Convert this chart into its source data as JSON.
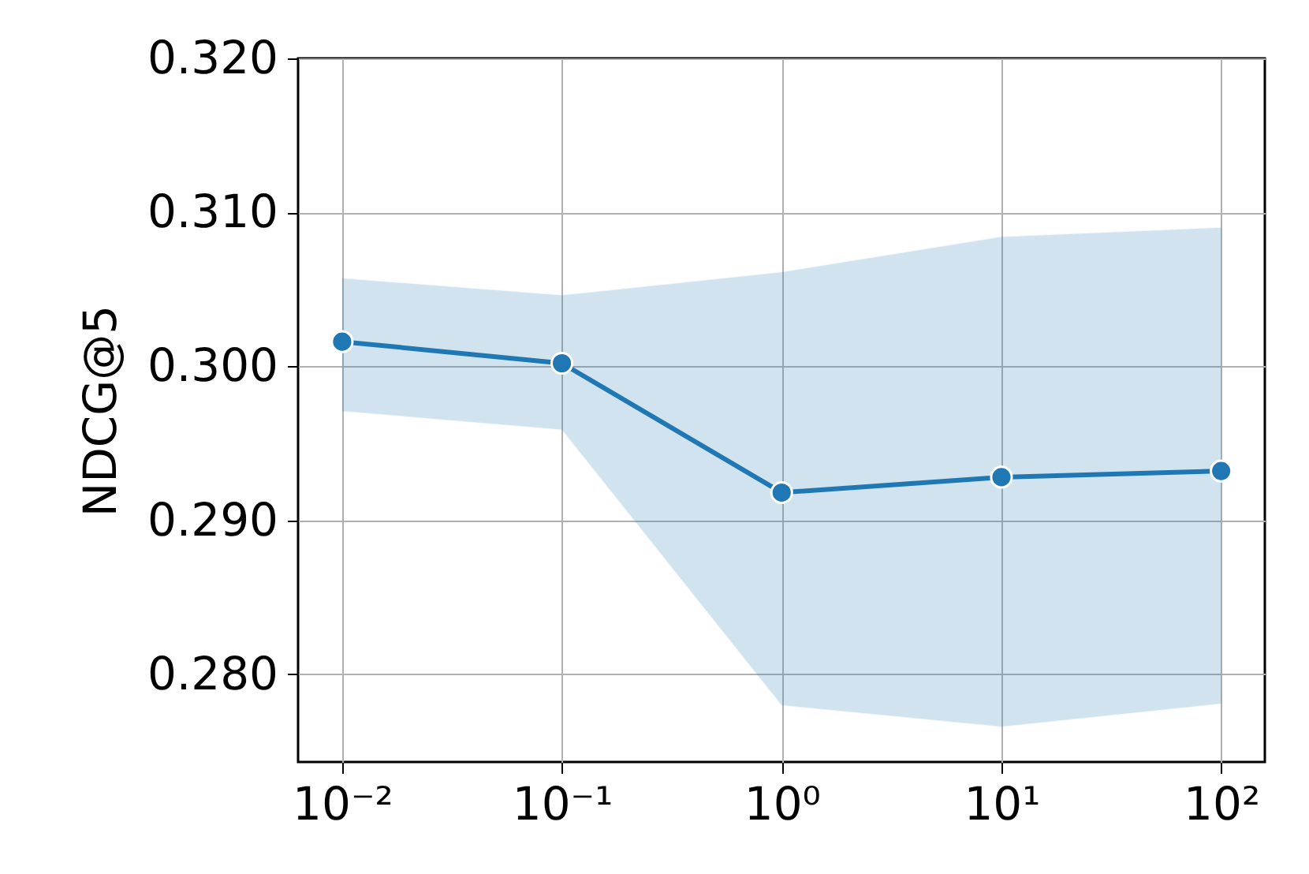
{
  "chart_data": {
    "type": "line",
    "ylabel": "NDCG@5",
    "x": [
      0.01,
      0.1,
      1,
      10,
      100
    ],
    "series": [
      {
        "color": "#1f77b4",
        "values": [
          0.3016,
          0.3002,
          0.2918,
          0.2928,
          0.2932
        ],
        "lower": [
          0.2971,
          0.2959,
          0.278,
          0.2766,
          0.2781
        ],
        "upper": [
          0.3057,
          0.3046,
          0.3061,
          0.3084,
          0.309
        ]
      }
    ],
    "log": "x",
    "xlim": [
      0.0063,
      158
    ],
    "ylim": [
      0.2743,
      0.32
    ],
    "xticks": [
      {
        "value": 0.01,
        "label": "10⁻²"
      },
      {
        "value": 0.1,
        "label": "10⁻¹"
      },
      {
        "value": 1,
        "label": "10⁰"
      },
      {
        "value": 10,
        "label": "10¹"
      },
      {
        "value": 100,
        "label": "10²"
      }
    ],
    "yticks": [
      {
        "value": 0.28,
        "label": "0.280"
      },
      {
        "value": 0.29,
        "label": "0.290"
      },
      {
        "value": 0.3,
        "label": "0.300"
      },
      {
        "value": 0.31,
        "label": "0.310"
      },
      {
        "value": 0.32,
        "label": "0.320"
      }
    ],
    "grid": true,
    "marker": "circle",
    "line_style": "solid"
  }
}
